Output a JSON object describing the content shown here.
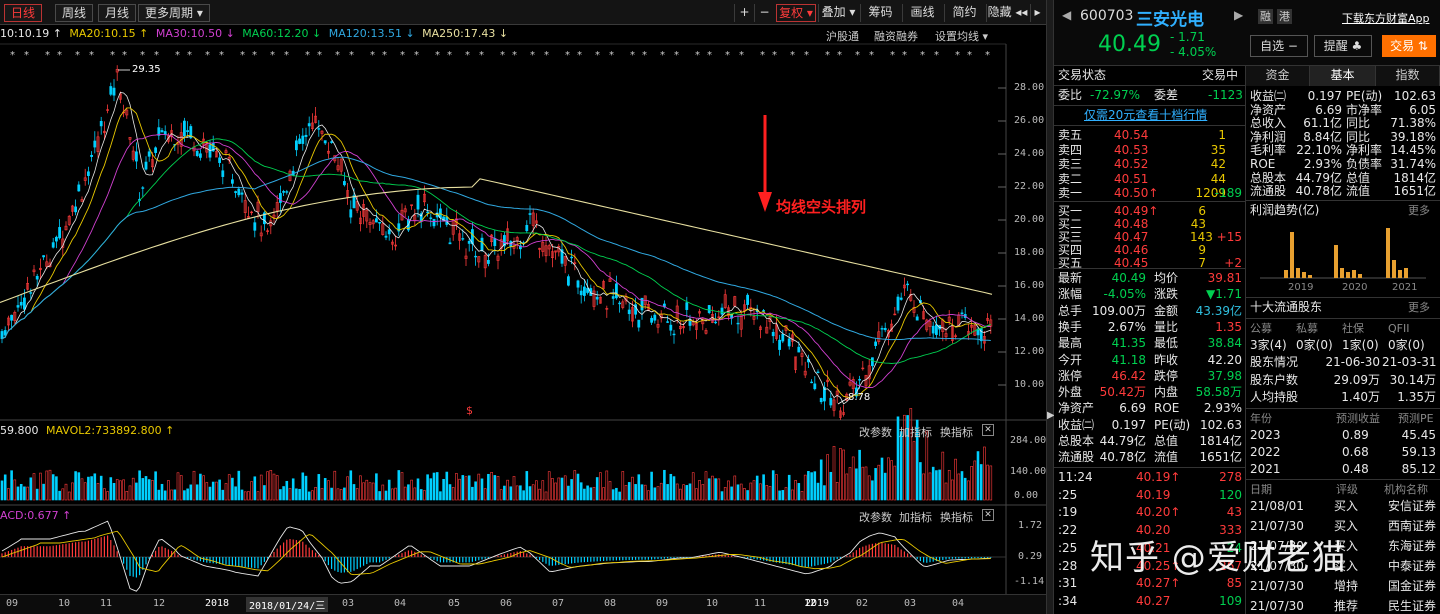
{
  "toolbar": {
    "tabs": [
      "日线",
      "周线",
      "月线",
      "更多周期 ▾"
    ],
    "right_buttons": [
      "+",
      "−",
      "复权 ▾",
      "叠加 ▾",
      "筹码",
      "画线",
      "简约",
      "隐藏 ◂◂"
    ],
    "nav_arrow": "▸"
  },
  "ma_line": [
    {
      "text": "10:10.19 ↑",
      "color": "#e8e8e8"
    },
    {
      "text": "MA20:10.15 ↑",
      "color": "#e8c800"
    },
    {
      "text": "MA30:10.50 ↓",
      "color": "#d040d0"
    },
    {
      "text": "MA60:12.20 ↓",
      "color": "#00d050"
    },
    {
      "text": "MA120:13.51 ↓",
      "color": "#30a8e0"
    },
    {
      "text": "MA250:17.43 ↓",
      "color": "#e8e0a0"
    }
  ],
  "main_links": [
    "沪股通",
    "融资融券",
    "设置均线 ▾"
  ],
  "price_axis": [
    "28.00",
    "26.00",
    "24.00",
    "22.00",
    "20.00",
    "18.00",
    "16.00",
    "14.00",
    "12.00",
    "10.00"
  ],
  "annotation": {
    "text": "均线空头排列",
    "high_label": "29.35",
    "low_label": "8.78",
    "dollar": "$"
  },
  "vol_panel": {
    "header_left": "59.800",
    "header_mavol": "MAVOL2:733892.800 ↑",
    "links": [
      "改参数",
      "加指标",
      "换指标"
    ],
    "axis": [
      "284.00",
      "140.00",
      "0.00"
    ]
  },
  "macd_panel": {
    "header": "ACD:0.677 ↑",
    "links": [
      "改参数",
      "加指标",
      "换指标"
    ],
    "axis": [
      "1.72",
      "0.29",
      "-1.14"
    ]
  },
  "x_axis": [
    "09",
    "10",
    "11",
    "12",
    "2018",
    "2018/01/24/三",
    "03",
    "04",
    "05",
    "06",
    "07",
    "08",
    "09",
    "10",
    "11",
    "12",
    "2019",
    "02",
    "03",
    "04"
  ],
  "stock": {
    "code": "600703",
    "name": "三安光电",
    "price": "40.49",
    "change": "- 1.71",
    "pct": "- 4.05%",
    "tags": [
      "融",
      "港"
    ],
    "app_link": "下载东方财富App"
  },
  "buttons": {
    "watch": "自选 −",
    "alert": "提醒 ♣",
    "trade": "交易 ⇅"
  },
  "status": {
    "label": "交易状态",
    "value": "交易中"
  },
  "ratio": {
    "k1": "委比",
    "v1": "-72.97%",
    "k2": "委差",
    "v2": "-1123"
  },
  "promo": "仅需20元查看十档行情",
  "asks": [
    {
      "l": "卖五",
      "p": "40.54",
      "v": "1",
      "d": ""
    },
    {
      "l": "卖四",
      "p": "40.53",
      "v": "35",
      "d": ""
    },
    {
      "l": "卖三",
      "p": "40.52",
      "v": "42",
      "d": ""
    },
    {
      "l": "卖二",
      "p": "40.51",
      "v": "44",
      "d": ""
    },
    {
      "l": "卖一",
      "p": "40.50↑",
      "v": "1209",
      "d": "-189"
    }
  ],
  "bids": [
    {
      "l": "买一",
      "p": "40.49↑",
      "v": "6",
      "d": ""
    },
    {
      "l": "买二",
      "p": "40.48",
      "v": "43",
      "d": ""
    },
    {
      "l": "买三",
      "p": "40.47",
      "v": "143",
      "d": "+15"
    },
    {
      "l": "买四",
      "p": "40.46",
      "v": "9",
      "d": ""
    },
    {
      "l": "买五",
      "p": "40.45",
      "v": "7",
      "d": "+2"
    }
  ],
  "quote": [
    {
      "k1": "最新",
      "v1": "40.49",
      "c1": "g",
      "k2": "均价",
      "v2": "39.81",
      "c2": "r"
    },
    {
      "k1": "涨幅",
      "v1": "-4.05%",
      "c1": "g",
      "k2": "涨跌",
      "v2": "▼1.71",
      "c2": "g"
    },
    {
      "k1": "总手",
      "v1": "109.00万",
      "c1": "w",
      "k2": "金额",
      "v2": "43.39亿",
      "c2": "c"
    },
    {
      "k1": "换手",
      "v1": "2.67%",
      "c1": "w",
      "k2": "量比",
      "v2": "1.35",
      "c2": "r"
    },
    {
      "k1": "最高",
      "v1": "41.35",
      "c1": "g",
      "k2": "最低",
      "v2": "38.84",
      "c2": "g"
    },
    {
      "k1": "今开",
      "v1": "41.18",
      "c1": "g",
      "k2": "昨收",
      "v2": "42.20",
      "c2": "w"
    },
    {
      "k1": "涨停",
      "v1": "46.42",
      "c1": "r",
      "k2": "跌停",
      "v2": "37.98",
      "c2": "g"
    },
    {
      "k1": "外盘",
      "v1": "50.42万",
      "c1": "r",
      "k2": "内盘",
      "v2": "58.58万",
      "c2": "g"
    },
    {
      "k1": "净资产",
      "v1": "6.69",
      "c1": "w",
      "k2": "ROE",
      "v2": "2.93%",
      "c2": "w"
    },
    {
      "k1": "收益㈡",
      "v1": "0.197",
      "c1": "w",
      "k2": "PE(动)",
      "v2": "102.63",
      "c2": "w"
    },
    {
      "k1": "总股本",
      "v1": "44.79亿",
      "c1": "w",
      "k2": "总值",
      "v2": "1814亿",
      "c2": "w"
    },
    {
      "k1": "流通股",
      "v1": "40.78亿",
      "c1": "w",
      "k2": "流值",
      "v2": "1651亿",
      "c2": "w"
    }
  ],
  "ticks": [
    {
      "t": "11:24",
      "p": "40.19↑",
      "v": "278",
      "vc": "r"
    },
    {
      "t": ":25",
      "p": "40.19",
      "v": "120",
      "vc": "g"
    },
    {
      "t": ":19",
      "p": "40.20↑",
      "v": "43",
      "vc": "r"
    },
    {
      "t": ":22",
      "p": "40.20",
      "v": "333",
      "vc": "r"
    },
    {
      "t": ":25",
      "p": "40.21",
      "v": "24",
      "vc": "g"
    },
    {
      "t": ":28",
      "p": "40.25↑",
      "v": "267",
      "vc": "r"
    },
    {
      "t": ":31",
      "p": "40.27↑",
      "v": "85",
      "vc": "r"
    },
    {
      "t": ":34",
      "p": "40.27",
      "v": "109",
      "vc": "g"
    }
  ],
  "right_tabs": [
    "资金",
    "基本",
    "指数"
  ],
  "fundamentals": [
    {
      "k1": "收益㈡",
      "v1": "0.197",
      "k2": "PE(动)",
      "v2": "102.63"
    },
    {
      "k1": "净资产",
      "v1": "6.69",
      "k2": "市净率",
      "v2": "6.05"
    },
    {
      "k1": "总收入",
      "v1": "61.1亿",
      "k2": "同比",
      "v2": "71.38%"
    },
    {
      "k1": "净利润",
      "v1": "8.84亿",
      "k2": "同比",
      "v2": "39.18%"
    },
    {
      "k1": "毛利率",
      "v1": "22.10%",
      "k2": "净利率",
      "v2": "14.45%"
    },
    {
      "k1": "ROE",
      "v1": "2.93%",
      "k2": "负债率",
      "v2": "31.74%"
    },
    {
      "k1": "总股本",
      "v1": "44.79亿",
      "k2": "总值",
      "v2": "1814亿"
    },
    {
      "k1": "流通股",
      "v1": "40.78亿",
      "k2": "流值",
      "v2": "1651亿"
    }
  ],
  "profit": {
    "title": "利润趋势(亿)",
    "more": "更多",
    "years": [
      "2019",
      "2020",
      "2021"
    ]
  },
  "holders": {
    "title": "十大流通股东",
    "more": "更多",
    "cols": [
      "公募",
      "私募",
      "社保",
      "QFII"
    ],
    "counts": [
      "3家(4)",
      "0家(0)",
      "1家(0)",
      "0家(0)"
    ],
    "rows": [
      {
        "k": "股东情况",
        "a": "21-06-30",
        "b": "21-03-31"
      },
      {
        "k": "股东户数",
        "a": "29.09万",
        "b": "30.14万"
      },
      {
        "k": "人均持股",
        "a": "1.40万",
        "b": "1.35万"
      }
    ]
  },
  "forecast": {
    "headers": [
      "年份",
      "预测收益",
      "预测PE"
    ],
    "rows": [
      {
        "y": "2023",
        "e": "0.89",
        "pe": "45.45"
      },
      {
        "y": "2022",
        "e": "0.68",
        "pe": "59.13"
      },
      {
        "y": "2021",
        "e": "0.48",
        "pe": "85.12"
      }
    ]
  },
  "ratings": {
    "headers": [
      "日期",
      "评级",
      "机构名称"
    ],
    "rows": [
      {
        "d": "21/08/01",
        "r": "买入",
        "o": "安信证券"
      },
      {
        "d": "21/07/30",
        "r": "买入",
        "o": "西南证券"
      },
      {
        "d": "21/07/30",
        "r": "买入",
        "o": "东海证券"
      },
      {
        "d": "21/07/30",
        "r": "买入",
        "o": "中泰证券"
      },
      {
        "d": "21/07/30",
        "r": "增持",
        "o": "国金证券"
      },
      {
        "d": "21/07/30",
        "r": "推荐",
        "o": "民生证券"
      }
    ]
  },
  "watermark": "知乎 @爱财老猫",
  "colors": {
    "up": "#ff3b3b",
    "down": "#00d050",
    "bg": "#000000",
    "accent": "#ff3b3b"
  }
}
